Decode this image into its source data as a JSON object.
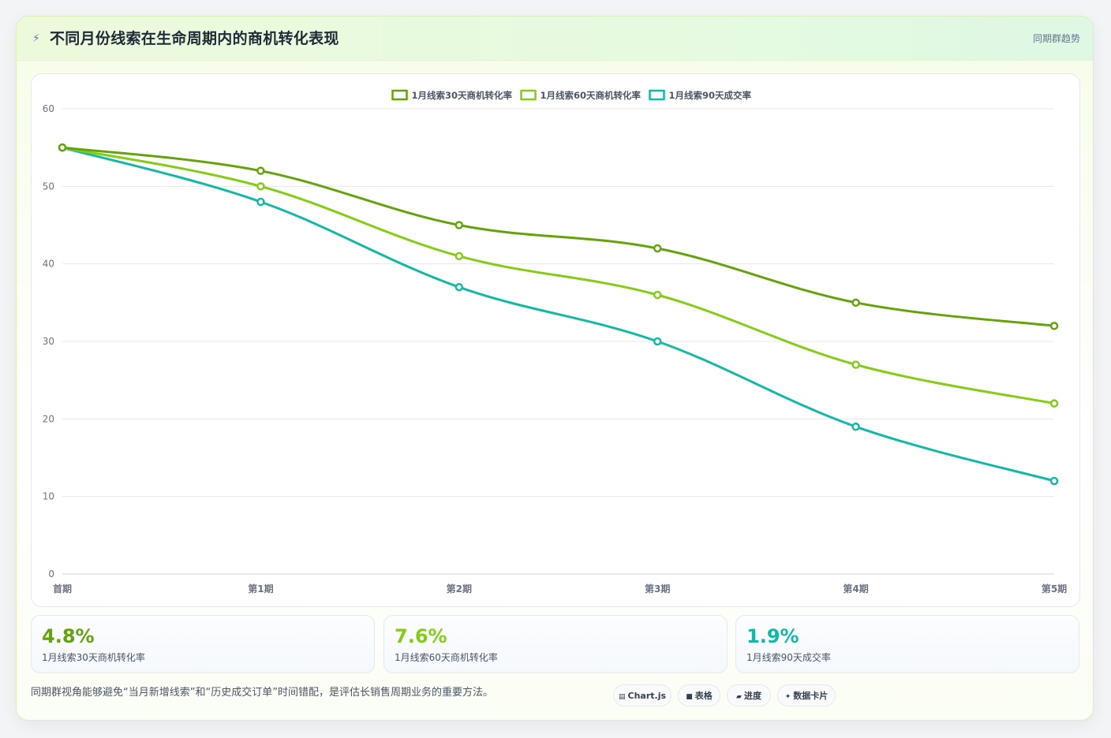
{
  "header": {
    "icon": "lightning-icon",
    "title": "不同月份线索在生命周期内的商机转化表现",
    "tag": "同期群趋势"
  },
  "chart_data": {
    "type": "line",
    "title": "",
    "xlabel": "",
    "ylabel": "",
    "categories": [
      "首期",
      "第1期",
      "第2期",
      "第3期",
      "第4期",
      "第5期"
    ],
    "ylim": [
      0,
      60
    ],
    "yticks": [
      0,
      10,
      20,
      30,
      40,
      50,
      60
    ],
    "grid": true,
    "legend_position": "top-center",
    "series": [
      {
        "name": "1月线索30天商机转化率",
        "color": "#65a30d",
        "values": [
          55,
          52,
          45,
          42,
          35,
          32
        ]
      },
      {
        "name": "1月线索60天商机转化率",
        "color": "#84cc16",
        "values": [
          55,
          50,
          41,
          36,
          27,
          22
        ]
      },
      {
        "name": "1月线索90天成交率",
        "color": "#14b8a6",
        "values": [
          55,
          48,
          37,
          30,
          19,
          12
        ]
      }
    ]
  },
  "stats": [
    {
      "value": "4.8%",
      "label": "1月线索30天商机转化率",
      "color": "#65a30d"
    },
    {
      "value": "7.6%",
      "label": "1月线索60天商机转化率",
      "color": "#84cc16"
    },
    {
      "value": "1.9%",
      "label": "1月线索90天成交率",
      "color": "#14b8a6"
    }
  ],
  "footer": {
    "note": "同期群视角能够避免“当月新增线索”和“历史成交订单”时间错配，是评估长销售周期业务的重要方法。"
  },
  "chips": [
    {
      "icon": "chart-icon",
      "glyph": "▤",
      "label": "Chart.js"
    },
    {
      "icon": "table-icon",
      "glyph": "■",
      "label": "表格"
    },
    {
      "icon": "progress-icon",
      "glyph": "▰",
      "label": "进度"
    },
    {
      "icon": "sparkle-icon",
      "glyph": "✦",
      "label": "数据卡片"
    }
  ]
}
